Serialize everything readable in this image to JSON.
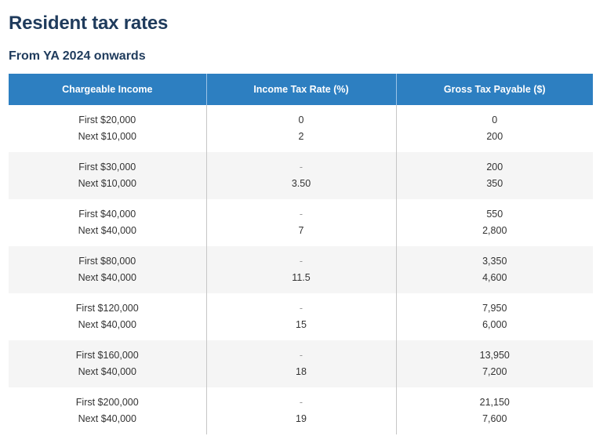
{
  "page": {
    "title": "Resident tax rates",
    "subtitle": "From YA 2024 onwards"
  },
  "table": {
    "headers": [
      "Chargeable Income",
      "Income Tax Rate (%)",
      "Gross Tax Payable ($)"
    ],
    "rows": [
      {
        "income": [
          "First $20,000",
          "Next $10,000"
        ],
        "rate": [
          "0",
          "2"
        ],
        "tax": [
          "0",
          "200"
        ]
      },
      {
        "income": [
          "First $30,000",
          "Next $10,000"
        ],
        "rate": [
          "-",
          "3.50"
        ],
        "tax": [
          "200",
          "350"
        ]
      },
      {
        "income": [
          "First $40,000",
          "Next $40,000"
        ],
        "rate": [
          "-",
          "7"
        ],
        "tax": [
          "550",
          "2,800"
        ]
      },
      {
        "income": [
          "First $80,000",
          "Next $40,000"
        ],
        "rate": [
          "-",
          "11.5"
        ],
        "tax": [
          "3,350",
          "4,600"
        ]
      },
      {
        "income": [
          "First $120,000",
          "Next $40,000"
        ],
        "rate": [
          "-",
          "15"
        ],
        "tax": [
          "7,950",
          "6,000"
        ]
      },
      {
        "income": [
          "First $160,000",
          "Next $40,000"
        ],
        "rate": [
          "-",
          "18"
        ],
        "tax": [
          "13,950",
          "7,200"
        ]
      },
      {
        "income": [
          "First $200,000",
          "Next $40,000"
        ],
        "rate": [
          "-",
          "19"
        ],
        "tax": [
          "21,150",
          "7,600"
        ]
      }
    ]
  },
  "colors": {
    "title": "#1f3b5c",
    "header_bg": "#2d7fc1",
    "header_text": "#ffffff",
    "alt_row_bg": "#f5f5f5"
  }
}
